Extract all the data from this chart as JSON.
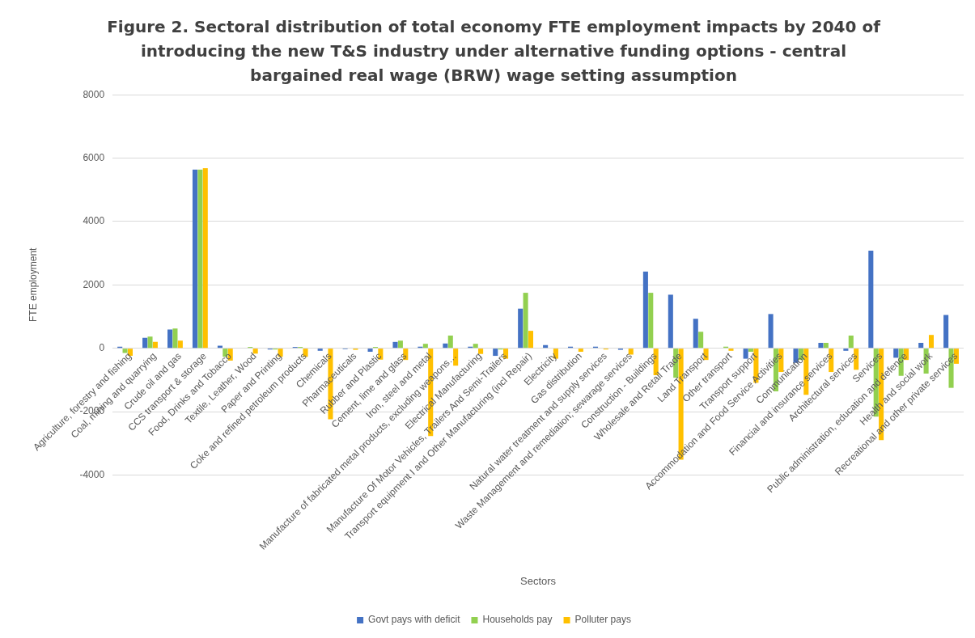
{
  "chart_data": {
    "type": "bar",
    "title": "Figure 2. Sectoral distribution of total economy FTE employment impacts by 2040 of introducing the new T&S industry under alternative funding options - central bargained real wage (BRW) wage setting assumption",
    "xlabel": "Sectors",
    "ylabel": "FTE employment",
    "categories": [
      "Agriculture, forestry and fishing",
      "Coal, mining and quarrying",
      "Crude oil and gas",
      "CCS transport & storage",
      "Food, Drinks and Tobacco",
      "Textile, Leather, Wood",
      "Paper and Printing",
      "Coke and refined petroleum products",
      "Chemicals",
      "Pharmaceuticals",
      "Rubber and Plastic",
      "Cement, lime and glass",
      "Iron, steel and metal",
      "Manufacture of fabricated metal products, excluding weapons…",
      "Electrical Manufacturing",
      "Manufacture Of Motor Vehicles, Trailers And Semi-Trailers",
      "Transport equipment I and Other Manufacturing (incl Repair)",
      "Electricity",
      "Gas distribution",
      "Natural water treatment and supply services",
      "Waste Management and remediation; sewarage services",
      "Construction - Buildings",
      "Wholesale and Retail Trade",
      "Land Transport",
      "Other transport",
      "Transport support",
      "Accommodation and Food Service Activities",
      "Communication",
      "Financial and insurance services",
      "Architectural services",
      "Services",
      "Public administration, education and defence",
      "Health and social work",
      "Recreational and other private services"
    ],
    "series": [
      {
        "name": "Govt pays with deficit",
        "color": "#4472c4",
        "values": [
          50,
          330,
          590,
          5640,
          80,
          null,
          -40,
          40,
          -80,
          -30,
          -110,
          200,
          50,
          150,
          50,
          -240,
          1250,
          100,
          50,
          50,
          -50,
          2420,
          1690,
          930,
          null,
          -330,
          1080,
          -460,
          170,
          -80,
          3080,
          -300,
          170,
          1050
        ]
      },
      {
        "name": "Households pay",
        "color": "#92d050",
        "values": [
          -150,
          370,
          620,
          5640,
          -270,
          40,
          -40,
          40,
          0,
          null,
          40,
          240,
          140,
          400,
          140,
          -40,
          1750,
          0,
          0,
          0,
          0,
          1750,
          -930,
          520,
          50,
          -110,
          -1360,
          -370,
          170,
          400,
          -2160,
          -870,
          -800,
          -1250
        ]
      },
      {
        "name": "Polluter pays",
        "color": "#ffc000",
        "values": [
          -240,
          200,
          240,
          5680,
          -390,
          -170,
          -270,
          -270,
          -2240,
          -50,
          -360,
          -370,
          -2770,
          -550,
          -180,
          -330,
          550,
          -330,
          -110,
          -40,
          -200,
          -850,
          -3520,
          -370,
          -80,
          -1090,
          -750,
          -1470,
          -750,
          -680,
          -2900,
          -370,
          420,
          -490
        ]
      }
    ],
    "ylim": [
      -4000,
      8000
    ],
    "yticks": [
      -4000,
      -2000,
      0,
      2000,
      4000,
      6000,
      8000
    ],
    "grid": "y",
    "legend": "bottom"
  }
}
